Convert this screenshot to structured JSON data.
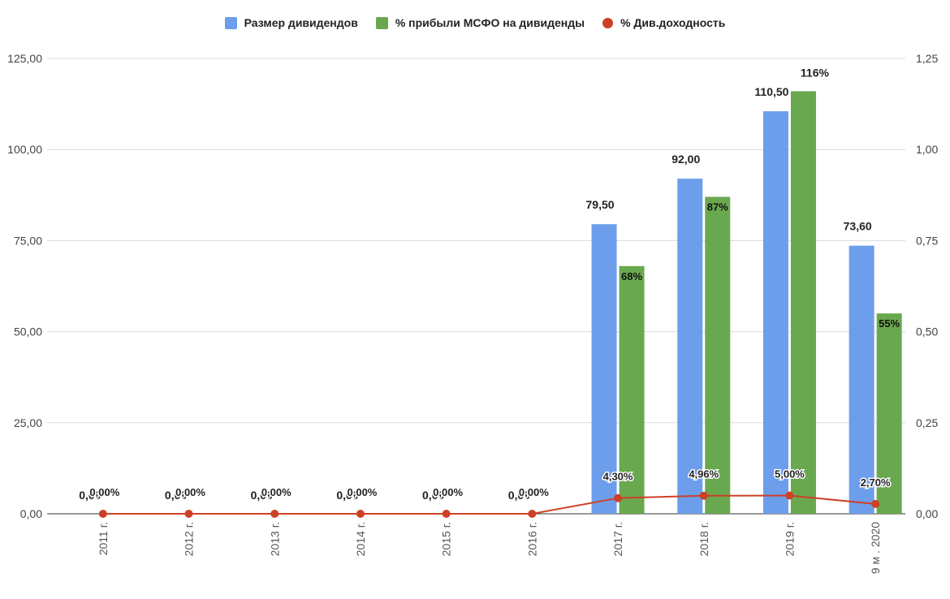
{
  "chart_data": {
    "type": "bar",
    "categories": [
      "2011 г.",
      "2012 г.",
      "2013 г.",
      "2014 г.",
      "2015 г.",
      "2016 г.",
      "2017 г.",
      "2018 г.",
      "2019 г.",
      "9 м . 2020"
    ],
    "series": [
      {
        "name": "Размер дивидендов",
        "type": "bar",
        "axis": "left",
        "color": "#6d9eeb",
        "values": [
          0,
          0,
          0,
          0,
          0,
          0,
          79.5,
          92.0,
          110.5,
          73.6
        ],
        "labels": [
          "0,00",
          "0,00",
          "0,00",
          "0,00",
          "0,00",
          "0,00",
          "79,50",
          "92,00",
          "110,50",
          "73,60"
        ]
      },
      {
        "name": "% прибыли МСФО на дивиденды",
        "type": "bar",
        "axis": "right",
        "color": "#6aa84f",
        "values": [
          0,
          0,
          0,
          0,
          0,
          0,
          0.68,
          0.87,
          1.16,
          0.55
        ],
        "labels": [
          "",
          "",
          "",
          "",
          "",
          "",
          "68%",
          "87%",
          "116%",
          "55%"
        ]
      },
      {
        "name": "% Див.доходность",
        "type": "line",
        "axis": "right",
        "color": "#cc4125",
        "values": [
          0,
          0,
          0,
          0,
          0,
          0,
          0.043,
          0.0496,
          0.05,
          0.027
        ],
        "labels": [
          "0,00%",
          "0,00%",
          "0,00%",
          "0,00%",
          "0,00%",
          "0,00%",
          "4,30%",
          "4,96%",
          "5,00%",
          "2,70%"
        ]
      }
    ],
    "ylim_left": [
      0,
      125
    ],
    "ylim_right": [
      0,
      1.25
    ],
    "yticks_left": [
      "0,00",
      "25,00",
      "50,00",
      "75,00",
      "100,00",
      "125,00"
    ],
    "yticks_right": [
      "0,00",
      "0,25",
      "0,50",
      "0,75",
      "1,00",
      "1,25"
    ],
    "grid": true,
    "legend_position": "top"
  }
}
